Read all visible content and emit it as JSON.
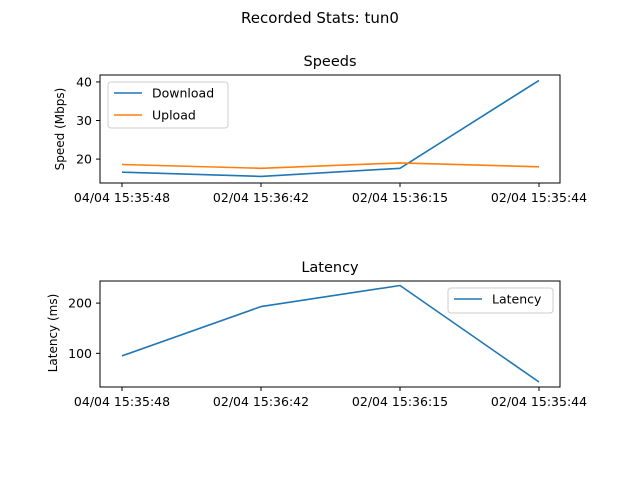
{
  "figure": {
    "title": "Recorded Stats: tun0"
  },
  "chart_data": [
    {
      "type": "line",
      "title": "Speeds",
      "xlabel": "",
      "ylabel": "Speed (Mbps)",
      "categories": [
        "04/04 15:35:48",
        "02/04 15:36:42",
        "02/04 15:36:15",
        "02/04 15:35:44"
      ],
      "ylim": [
        13.8,
        41.8
      ],
      "yticks": [
        20,
        30,
        40
      ],
      "grid": false,
      "legend": "top-left",
      "series": [
        {
          "name": "Download",
          "color": "#1f77b4",
          "values": [
            16.6,
            15.5,
            17.6,
            40.4
          ]
        },
        {
          "name": "Upload",
          "color": "#ff7f0e",
          "values": [
            18.6,
            17.6,
            19.0,
            18.0
          ]
        }
      ]
    },
    {
      "type": "line",
      "title": "Latency",
      "xlabel": "",
      "ylabel": "Latency (ms)",
      "categories": [
        "04/04 15:35:48",
        "02/04 15:36:42",
        "02/04 15:36:15",
        "02/04 15:35:44"
      ],
      "ylim": [
        33,
        244
      ],
      "yticks": [
        100,
        200
      ],
      "grid": false,
      "legend": "top-right",
      "series": [
        {
          "name": "Latency",
          "color": "#1f77b4",
          "values": [
            95,
            193,
            235,
            43
          ]
        }
      ]
    }
  ]
}
